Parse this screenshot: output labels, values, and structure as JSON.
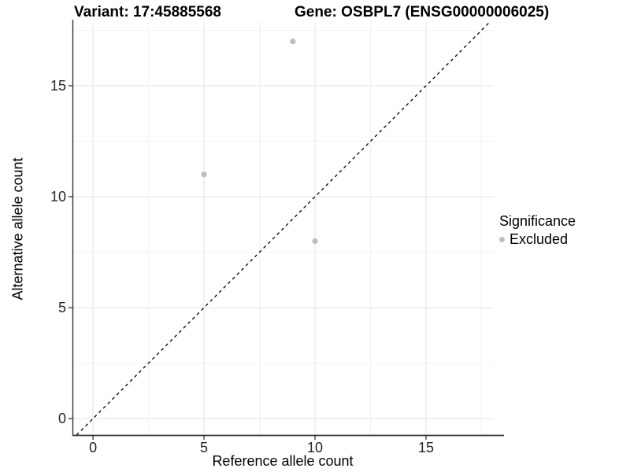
{
  "figure": {
    "title_left": "Variant: 17:45885568",
    "title_right": "Gene: OSBPL7 (ENSG00000006025)"
  },
  "chart_data": {
    "type": "scatter",
    "title": "Variant: 17:45885568 — Gene: OSBPL7 (ENSG00000006025)",
    "xlabel": "Reference allele count",
    "ylabel": "Alternative allele count",
    "xlim": [
      -0.89,
      18.05
    ],
    "ylim": [
      -0.74,
      17.87
    ],
    "x_ticks": [
      0,
      5,
      10,
      15
    ],
    "x_minor_ticks": [
      2.5,
      7.5,
      12.5,
      17.5
    ],
    "y_ticks": [
      0,
      5,
      10,
      15
    ],
    "y_minor_ticks": [
      2.5,
      7.5,
      12.5,
      17.5
    ],
    "grid": "major+minor",
    "series": [
      {
        "name": "Excluded",
        "color": "#bebebe",
        "points": [
          {
            "x": 9,
            "y": 17
          },
          {
            "x": 5,
            "y": 11
          },
          {
            "x": 10,
            "y": 8
          }
        ]
      }
    ],
    "reference_line": {
      "slope": 1,
      "intercept": 0,
      "style": "dashed",
      "color": "#000000"
    },
    "legend": {
      "title": "Significance",
      "position": "right",
      "items": [
        {
          "label": "Excluded",
          "color": "#bebebe"
        }
      ]
    },
    "colors": {
      "background": "#ffffff",
      "major_grid": "#e3e3e3",
      "minor_grid": "#f2f2f2",
      "axis_line": "#333333",
      "tick_label": "#262626"
    }
  }
}
